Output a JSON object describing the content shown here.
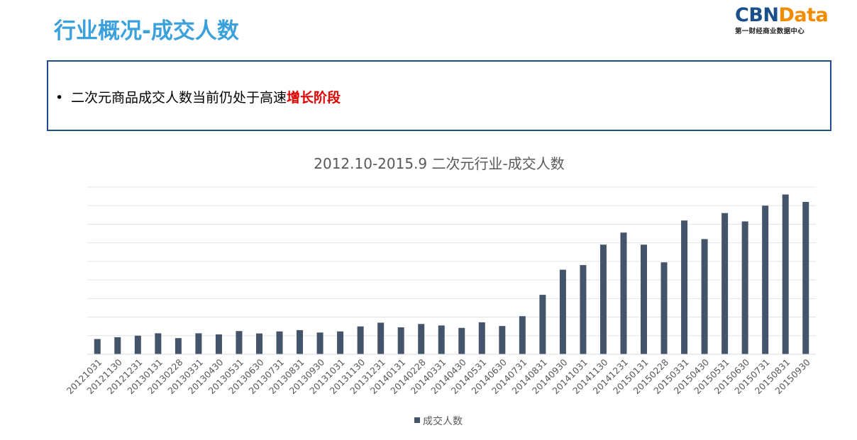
{
  "header": {
    "title": "行业概况-成交人数",
    "logo": {
      "main_a": "CBN",
      "main_b": "Data",
      "sub": "第一财经商业数据中心"
    }
  },
  "summary": {
    "bullet": "•",
    "text_plain": "二次元商品成交人数当前仍处于高速",
    "text_highlight": "增长阶段"
  },
  "colors": {
    "title": "#3aa1dc",
    "bar": "#44546a",
    "highlight": "#e00000",
    "box_border": "#1f4e8c"
  },
  "chart_data": {
    "type": "bar",
    "title": "2012.10-2015.9 二次元行业-成交人数",
    "xlabel": "",
    "ylabel": "",
    "y_axis_labels_visible": false,
    "grid": true,
    "legend": "bottom",
    "ylim": [
      0,
      9
    ],
    "categories": [
      "20121031",
      "20121130",
      "20121231",
      "20130131",
      "20130228",
      "20130331",
      "20130430",
      "20130531",
      "20130630",
      "20130731",
      "20130831",
      "20130930",
      "20131031",
      "20131130",
      "20131231",
      "20140131",
      "20140228",
      "20140331",
      "20140430",
      "20140531",
      "20140630",
      "20140731",
      "20140831",
      "20140930",
      "20141031",
      "20141130",
      "20141231",
      "20150131",
      "20150228",
      "20150331",
      "20150430",
      "20150531",
      "20150630",
      "20150731",
      "20150831",
      "20150930"
    ],
    "series": [
      {
        "name": "成交人数",
        "values": [
          0.82,
          0.92,
          1.0,
          1.13,
          0.87,
          1.13,
          1.07,
          1.25,
          1.12,
          1.23,
          1.3,
          1.17,
          1.23,
          1.5,
          1.7,
          1.45,
          1.63,
          1.55,
          1.42,
          1.72,
          1.52,
          2.05,
          3.2,
          4.55,
          4.8,
          5.9,
          6.55,
          5.9,
          4.95,
          7.2,
          6.2,
          7.6,
          7.15,
          8.0,
          8.6,
          8.2
        ]
      }
    ]
  }
}
